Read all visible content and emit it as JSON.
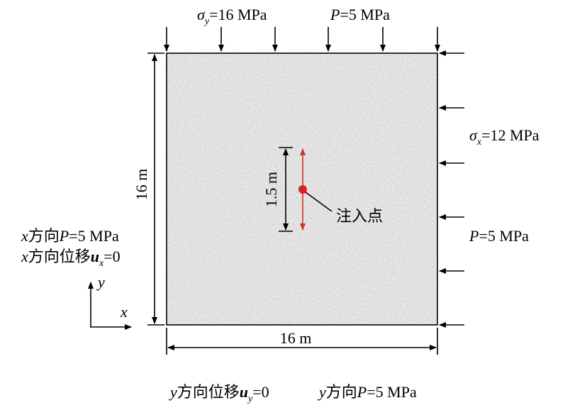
{
  "top": {
    "sigma_y": [
      "σ",
      "y",
      "=16 MPa"
    ],
    "pressure": [
      "P",
      "=5 MPa"
    ]
  },
  "right": {
    "sigma_x": [
      "σ",
      "x",
      "=12 MPa"
    ],
    "pressure": [
      "P",
      "=5 MPa"
    ]
  },
  "left": {
    "pressure": [
      "x",
      "方向",
      "P",
      "=5 MPa"
    ],
    "displacement": [
      "x",
      "方向位移",
      "u",
      "x",
      "=0"
    ]
  },
  "bottom": {
    "displacement": [
      "y",
      "方向位移",
      "u",
      "y",
      "=0"
    ],
    "pressure": [
      "y",
      "方向",
      "P",
      "=5 MPa"
    ]
  },
  "dimensions": {
    "height": "16 m",
    "width": "16 m",
    "crack": "1.5 m"
  },
  "injection_point": "注入点",
  "axes": {
    "x": "x",
    "y": "y"
  }
}
